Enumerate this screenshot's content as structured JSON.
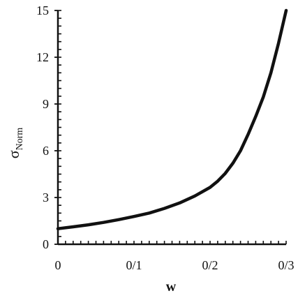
{
  "chart_data": {
    "type": "line",
    "title": "",
    "xlabel": "w",
    "ylabel": "σ",
    "ylabel_subscript": "Norm",
    "xlim": [
      0,
      0.3
    ],
    "ylim": [
      0,
      15
    ],
    "x_ticks": [
      {
        "value": 0,
        "label": "0"
      },
      {
        "value": 0.1,
        "label": "0/1"
      },
      {
        "value": 0.2,
        "label": "0/2"
      },
      {
        "value": 0.3,
        "label": "0/3"
      }
    ],
    "y_ticks": [
      {
        "value": 0,
        "label": "0"
      },
      {
        "value": 3,
        "label": "3"
      },
      {
        "value": 6,
        "label": "6"
      },
      {
        "value": 9,
        "label": "9"
      },
      {
        "value": 12,
        "label": "12"
      },
      {
        "value": 15,
        "label": "15"
      }
    ],
    "x_minor_step": 0.01,
    "y_minor_step": 0.5,
    "grid": false,
    "line_color": "#111111",
    "series": [
      {
        "x": [
          0,
          0.02,
          0.04,
          0.06,
          0.08,
          0.1,
          0.12,
          0.14,
          0.16,
          0.18,
          0.2,
          0.21,
          0.22,
          0.23,
          0.24,
          0.25,
          0.26,
          0.27,
          0.28,
          0.29,
          0.3
        ],
        "y": [
          1.0,
          1.12,
          1.25,
          1.4,
          1.58,
          1.78,
          2.0,
          2.3,
          2.65,
          3.1,
          3.65,
          4.05,
          4.55,
          5.2,
          6.0,
          7.05,
          8.2,
          9.45,
          11.0,
          12.9,
          15.0
        ]
      }
    ]
  }
}
